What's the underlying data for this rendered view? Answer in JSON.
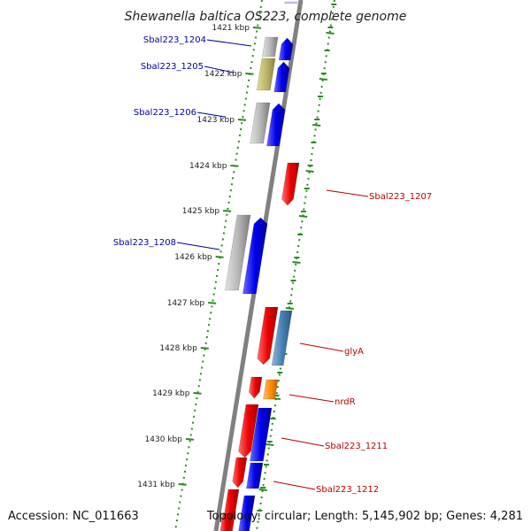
{
  "title": "Shewanella baltica OS223, complete genome",
  "footer": {
    "accession": "Accession: NC_011663",
    "topology": "Topology: circular; Length: 5,145,902 bp; Genes: 4,281"
  },
  "ticks": [
    "1421 kbp",
    "1422 kbp",
    "1423 kbp",
    "1424 kbp",
    "1425 kbp",
    "1426 kbp",
    "1427 kbp",
    "1428 kbp",
    "1429 kbp",
    "1430 kbp",
    "1431 kbp"
  ],
  "labels_left": [
    "Sbal223_1204",
    "Sbal223_1205",
    "Sbal223_1206",
    "Sbal223_1208"
  ],
  "labels_right": [
    "Sbal223_1207",
    "glyA",
    "nrdR",
    "Sbal223_1211",
    "Sbal223_1212"
  ],
  "colors": {
    "forward_cds": "#0000ee",
    "reverse_cds": "#ee0000",
    "blue_cds": "#4682b4",
    "orange_cds": "#ff8c00",
    "gray_gene": "#a9a9a9",
    "olive_gene": "#bdb76b",
    "tick_green": "#2e8b22",
    "backbone": "#808080"
  }
}
